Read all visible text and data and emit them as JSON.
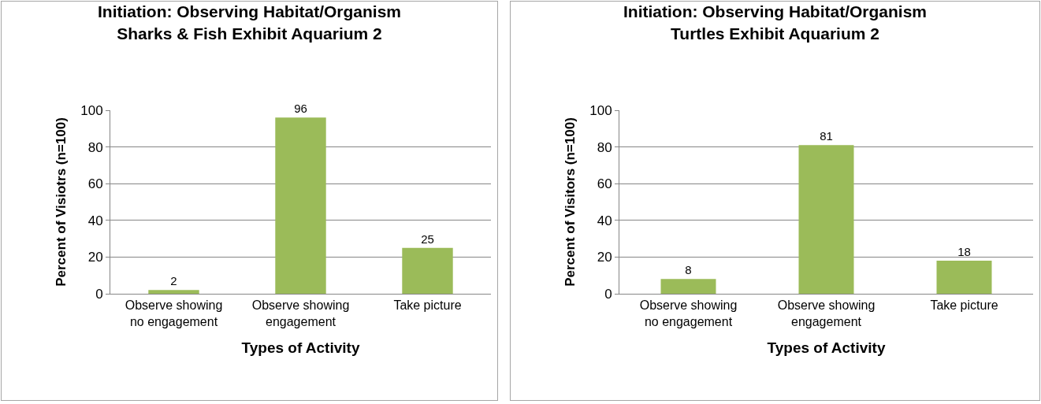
{
  "chart_data": [
    {
      "type": "bar",
      "title": "Initiation: Observing Habitat/Organism\nSharks & Fish Exhibit Aquarium 2",
      "xlabel": "Types of Activity",
      "ylabel": "Percent of Visiotrs (n=100)",
      "categories": [
        "Observe showing no engagement",
        "Observe showing engagement",
        "Take picture"
      ],
      "values": [
        2,
        96,
        25
      ],
      "color": "#9bbb59",
      "ylim": [
        0,
        100
      ],
      "yticks": [
        0,
        20,
        40,
        60,
        80,
        100
      ],
      "grid": "y",
      "data_labels": true,
      "legend": false
    },
    {
      "type": "bar",
      "title": "Initiation: Observing Habitat/Organism\nTurtles Exhibit Aquarium 2",
      "xlabel": "Types of Activity",
      "ylabel": "Percent of Visitors (n=100)",
      "categories": [
        "Observe showing no engagement",
        "Observe showing engagement",
        "Take picture"
      ],
      "values": [
        8,
        81,
        18
      ],
      "color": "#9bbb59",
      "ylim": [
        0,
        100
      ],
      "yticks": [
        0,
        20,
        40,
        60,
        80,
        100
      ],
      "grid": "y",
      "data_labels": true,
      "legend": false
    }
  ]
}
